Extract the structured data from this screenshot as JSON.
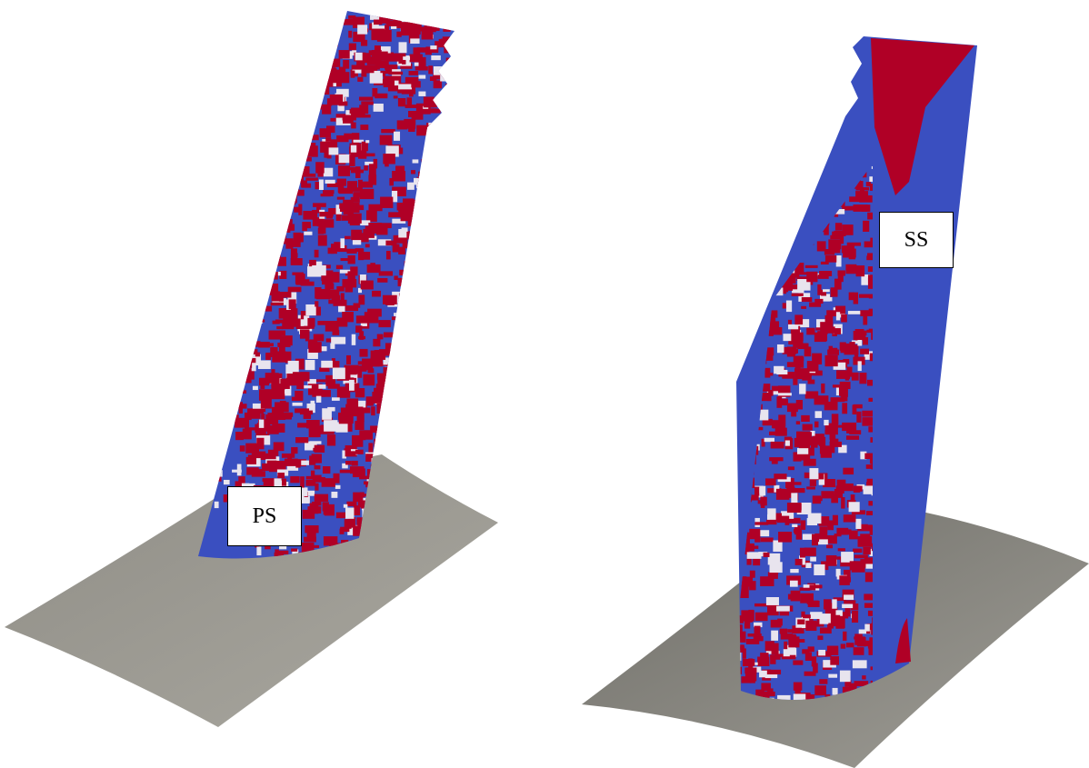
{
  "panels": [
    {
      "label": "PS"
    },
    {
      "label": "SS"
    }
  ]
}
